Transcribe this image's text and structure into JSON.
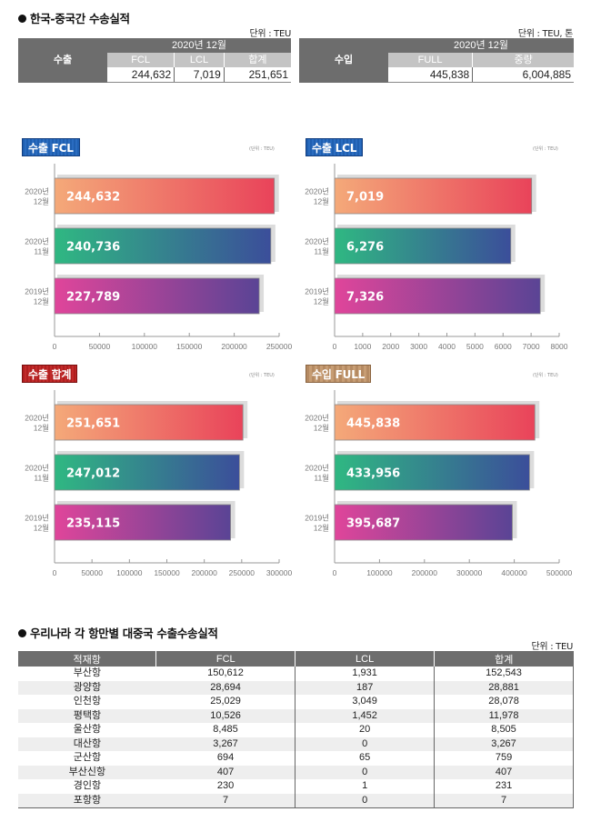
{
  "section1": {
    "title": "한국-중국간 수송실적",
    "export": {
      "unit": "단위 : TEU",
      "row_label": "수출",
      "period": "2020년 12월",
      "columns": [
        "FCL",
        "LCL",
        "합계"
      ],
      "values": [
        "244,632",
        "7,019",
        "251,651"
      ]
    },
    "import": {
      "unit": "단위 : TEU, 톤",
      "row_label": "수입",
      "period": "2020년 12월",
      "columns": [
        "FULL",
        "중량"
      ],
      "values": [
        "445,838",
        "6,004,885"
      ]
    }
  },
  "colors": {
    "bar_gradients": [
      [
        "#f4a979",
        "#e9435a"
      ],
      [
        "#2fb882",
        "#3b4e9a"
      ],
      [
        "#e0459a",
        "#5a4495"
      ]
    ],
    "shadow": "#dcdcdc",
    "header_dark": "#6d6d6d",
    "header_light": "#c4c4c4"
  },
  "chart_data": [
    {
      "type": "bar",
      "orientation": "horizontal",
      "title": "수출 FCL",
      "unit": "(단위 : TEU)",
      "categories": [
        [
          "2020년",
          "12월"
        ],
        [
          "2020년",
          "11월"
        ],
        [
          "2019년",
          "12월"
        ]
      ],
      "values": [
        244632,
        240736,
        227789
      ],
      "labels": [
        "244,632",
        "240,736",
        "227,789"
      ],
      "xlim": [
        0,
        250000
      ],
      "xticks": [
        0,
        50000,
        100000,
        150000,
        200000,
        250000
      ]
    },
    {
      "type": "bar",
      "orientation": "horizontal",
      "title": "수출 LCL",
      "unit": "(단위 : TEU)",
      "categories": [
        [
          "2020년",
          "12월"
        ],
        [
          "2020년",
          "11월"
        ],
        [
          "2019년",
          "12월"
        ]
      ],
      "values": [
        7019,
        6276,
        7326
      ],
      "labels": [
        "7,019",
        "6,276",
        "7,326"
      ],
      "xlim": [
        0,
        8000
      ],
      "xticks": [
        0,
        1000,
        2000,
        3000,
        4000,
        5000,
        6000,
        7000,
        8000
      ]
    },
    {
      "type": "bar",
      "orientation": "horizontal",
      "title": "수출 합계",
      "unit": "(단위 : TEU)",
      "categories": [
        [
          "2020년",
          "12월"
        ],
        [
          "2020년",
          "11월"
        ],
        [
          "2019년",
          "12월"
        ]
      ],
      "values": [
        251651,
        247012,
        235115
      ],
      "labels": [
        "251,651",
        "247,012",
        "235,115"
      ],
      "xlim": [
        0,
        300000
      ],
      "xticks": [
        0,
        50000,
        100000,
        150000,
        200000,
        250000,
        300000
      ]
    },
    {
      "type": "bar",
      "orientation": "horizontal",
      "title": "수입 FULL",
      "unit": "(단위 : TEU)",
      "categories": [
        [
          "2020년",
          "12월"
        ],
        [
          "2020년",
          "11월"
        ],
        [
          "2019년",
          "12월"
        ]
      ],
      "values": [
        445838,
        433956,
        395687
      ],
      "labels": [
        "445,838",
        "433,956",
        "395,687"
      ],
      "xlim": [
        0,
        500000
      ],
      "xticks": [
        0,
        100000,
        200000,
        300000,
        400000,
        500000
      ]
    }
  ],
  "section2": {
    "title": "우리나라 각 항만별 대중국 수출수송실적",
    "unit": "단위 : TEU",
    "columns": [
      "적재항",
      "FCL",
      "LCL",
      "합계"
    ],
    "rows": [
      [
        "부산항",
        "150,612",
        "1,931",
        "152,543"
      ],
      [
        "광양항",
        "28,694",
        "187",
        "28,881"
      ],
      [
        "인천항",
        "25,029",
        "3,049",
        "28,078"
      ],
      [
        "평택항",
        "10,526",
        "1,452",
        "11,978"
      ],
      [
        "울산항",
        "8,485",
        "20",
        "8,505"
      ],
      [
        "대산항",
        "3,267",
        "0",
        "3,267"
      ],
      [
        "군산항",
        "694",
        "65",
        "759"
      ],
      [
        "부산신항",
        "407",
        "0",
        "407"
      ],
      [
        "경인항",
        "230",
        "1",
        "231"
      ],
      [
        "포항항",
        "7",
        "0",
        "7"
      ]
    ]
  }
}
